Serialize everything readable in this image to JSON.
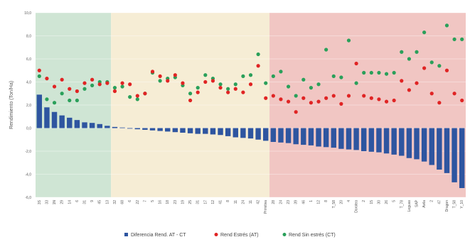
{
  "chart_data": {
    "type": "bar",
    "ylabel": "Rendimiento (Ton/Ha)",
    "ylim": [
      -6,
      10
    ],
    "yticks": [
      "-6,0",
      "-4,0",
      "-2,0",
      "0,0",
      "2,0",
      "4,0",
      "6,0",
      "8,0",
      "10,0"
    ],
    "grid": true,
    "legend": "bottom",
    "categories": [
      "3S",
      "33",
      "1N",
      "29",
      "14",
      "6",
      "31",
      "9",
      "45",
      "13",
      "32",
      "68",
      "6",
      "22",
      "7",
      "5",
      "16",
      "18",
      "23",
      "19",
      "25",
      "31",
      "17",
      "12",
      "41",
      "8",
      "11",
      "24",
      "11",
      "42",
      "Primitiva",
      "28",
      "24",
      "23",
      "39",
      "46",
      "1",
      "12",
      "8",
      "T_58",
      "20",
      "4",
      "Dorotea",
      "2",
      "15",
      "30",
      "26",
      "5",
      "T_78",
      "Leguas",
      "SAP",
      "Avila",
      "2",
      "47",
      "Dragon",
      "T_58",
      "Y_10"
    ],
    "zones": [
      {
        "from": 0,
        "to": 10,
        "color": "#cfe5d4"
      },
      {
        "from": 10,
        "to": 31,
        "color": "#f6edd5"
      },
      {
        "from": 31,
        "to": 57,
        "color": "#f1c6c3"
      }
    ],
    "series": [
      {
        "name": "Diferencia Rend. AT - CT",
        "kind": "bar",
        "color": "#2e55a0",
        "values": [
          2.9,
          1.8,
          1.4,
          1.1,
          0.9,
          0.7,
          0.5,
          0.45,
          0.35,
          0.2,
          0.1,
          0.05,
          -0.05,
          -0.1,
          -0.15,
          -0.2,
          -0.25,
          -0.3,
          -0.35,
          -0.4,
          -0.45,
          -0.5,
          -0.5,
          -0.55,
          -0.6,
          -0.7,
          -0.8,
          -0.85,
          -0.9,
          -1.0,
          -1.1,
          -1.2,
          -1.25,
          -1.3,
          -1.4,
          -1.45,
          -1.5,
          -1.6,
          -1.65,
          -1.7,
          -1.8,
          -1.85,
          -1.9,
          -2.0,
          -2.05,
          -2.1,
          -2.2,
          -2.3,
          -2.4,
          -2.6,
          -2.7,
          -2.9,
          -3.2,
          -3.6,
          -3.9,
          -4.7,
          -5.2
        ]
      },
      {
        "name": "Rend Estrés (AT)",
        "kind": "scatter",
        "color": "#e02424",
        "values": [
          5.0,
          4.3,
          3.6,
          4.2,
          3.4,
          3.2,
          3.9,
          4.2,
          3.8,
          3.9,
          3.2,
          3.9,
          3.8,
          2.8,
          3.0,
          4.9,
          4.5,
          4.1,
          4.6,
          3.9,
          2.4,
          3.1,
          4.0,
          4.1,
          3.5,
          3.1,
          3.4,
          3.1,
          3.8,
          5.4,
          2.6,
          2.8,
          2.5,
          2.3,
          1.4,
          2.6,
          2.2,
          2.3,
          2.6,
          2.8,
          2.1,
          2.8,
          5.6,
          2.8,
          2.6,
          2.5,
          2.3,
          2.4,
          4.1,
          3.3,
          3.9,
          5.2,
          3.0,
          2.2,
          5.0,
          3.0,
          2.4
        ]
      },
      {
        "name": "Rend Sin estrés (CT)",
        "kind": "scatter",
        "color": "#2aa05a",
        "values": [
          4.5,
          2.5,
          2.2,
          3.0,
          2.4,
          2.4,
          3.4,
          3.7,
          4.0,
          4.0,
          3.5,
          3.6,
          2.7,
          2.5,
          3.0,
          4.8,
          4.1,
          4.3,
          4.4,
          3.7,
          3.0,
          3.5,
          4.6,
          4.3,
          3.8,
          3.4,
          3.8,
          4.5,
          4.6,
          6.4,
          3.9,
          4.5,
          4.9,
          3.6,
          2.8,
          4.2,
          3.5,
          3.8,
          6.8,
          4.5,
          4.4,
          7.6,
          3.9,
          4.8,
          4.8,
          4.8,
          4.7,
          4.8,
          6.6,
          6.0,
          6.6,
          8.3,
          5.7,
          5.4,
          8.9,
          7.7,
          7.7
        ]
      }
    ]
  }
}
